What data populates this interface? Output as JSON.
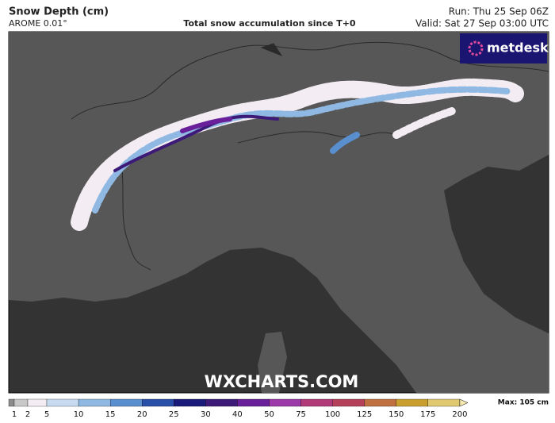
{
  "header": {
    "title": "Snow Depth (cm)",
    "model": "AROME 0.01°",
    "subtitle": "Total snow accumulation since T+0",
    "run": "Run: Thu 25 Sep 06Z",
    "valid": "Valid: Sat 27 Sep 03:00 UTC"
  },
  "logo": "metdesk",
  "watermark": "WXCHARTS.COM",
  "legend": {
    "levels": [
      1,
      2,
      5,
      10,
      15,
      20,
      25,
      30,
      40,
      50,
      75,
      100,
      125,
      150,
      175,
      200
    ],
    "colors": [
      "#8c8c8c",
      "#c8c8c8",
      "#f3ecf3",
      "#c6dbf0",
      "#8fb9e3",
      "#5a8fcf",
      "#2a4fa8",
      "#1a1a7a",
      "#3d1a78",
      "#6a1f9a",
      "#9b3aa8",
      "#b03a7a",
      "#b5405a",
      "#c07040",
      "#c9a030",
      "#e0c870",
      "#f5e8b0"
    ],
    "max": "Max: 105 cm"
  }
}
